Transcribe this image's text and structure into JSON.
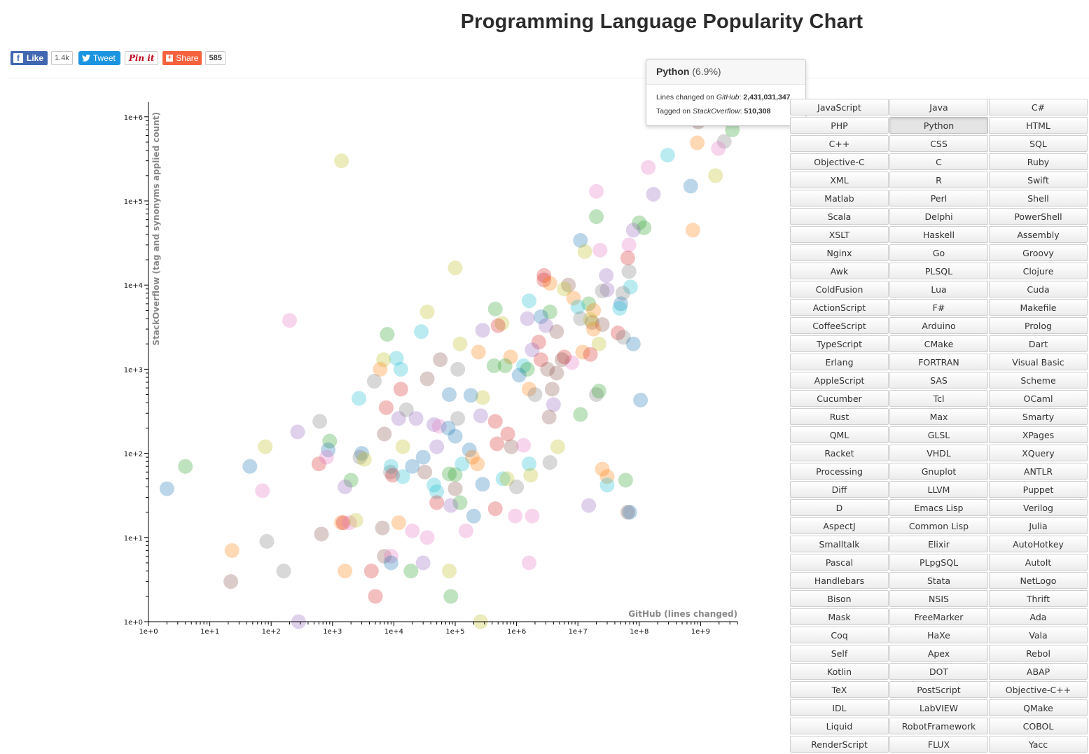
{
  "page": {
    "title": "Programming Language Popularity Chart"
  },
  "social": {
    "like_label": "Like",
    "like_count": "1.4k",
    "tweet_label": "Tweet",
    "pin_label": "Pin it",
    "share_label": "Share",
    "share_count": "585",
    "fb_glyph": "f",
    "share_glyph": "+"
  },
  "tooltip": {
    "name": "Python",
    "percent": "(6.9%)",
    "github_prefix": "Lines changed on ",
    "github_source": "GitHub",
    "github_value": "2,431,031,347",
    "so_prefix": "Tagged on ",
    "so_source": "StackOverflow",
    "so_value": "510,308"
  },
  "languages": [
    "JavaScript",
    "Java",
    "C#",
    "PHP",
    "Python",
    "HTML",
    "C++",
    "CSS",
    "SQL",
    "Objective-C",
    "C",
    "Ruby",
    "XML",
    "R",
    "Swift",
    "Matlab",
    "Perl",
    "Shell",
    "Scala",
    "Delphi",
    "PowerShell",
    "XSLT",
    "Haskell",
    "Assembly",
    "Nginx",
    "Go",
    "Groovy",
    "Awk",
    "PLSQL",
    "Clojure",
    "ColdFusion",
    "Lua",
    "Cuda",
    "ActionScript",
    "F#",
    "Makefile",
    "CoffeeScript",
    "Arduino",
    "Prolog",
    "TypeScript",
    "CMake",
    "Dart",
    "Erlang",
    "FORTRAN",
    "Visual Basic",
    "AppleScript",
    "SAS",
    "Scheme",
    "Cucumber",
    "Tcl",
    "OCaml",
    "Rust",
    "Max",
    "Smarty",
    "QML",
    "GLSL",
    "XPages",
    "Racket",
    "VHDL",
    "XQuery",
    "Processing",
    "Gnuplot",
    "ANTLR",
    "Diff",
    "LLVM",
    "Puppet",
    "D",
    "Emacs Lisp",
    "Verilog",
    "AspectJ",
    "Common Lisp",
    "Julia",
    "Smalltalk",
    "Elixir",
    "AutoHotkey",
    "Pascal",
    "PLpgSQL",
    "AutoIt",
    "Handlebars",
    "Stata",
    "NetLogo",
    "Bison",
    "NSIS",
    "Thrift",
    "Mask",
    "FreeMarker",
    "Ada",
    "Coq",
    "HaXe",
    "Vala",
    "Self",
    "Apex",
    "Rebol",
    "Kotlin",
    "DOT",
    "ABAP",
    "TeX",
    "PostScript",
    "Objective-C++",
    "IDL",
    "LabVIEW",
    "QMake",
    "Liquid",
    "RobotFramework",
    "COBOL",
    "RenderScript",
    "FLUX",
    "Yacc"
  ],
  "selected_language": "Python",
  "chart_data": {
    "type": "scatter",
    "xlabel": "GitHub (lines changed)",
    "ylabel": "StackOverflow (tag and synonyms applied count)",
    "x_scale": "log",
    "y_scale": "log",
    "xlim": [
      1,
      4000000000
    ],
    "ylim": [
      1,
      1500000
    ],
    "x_ticks": [
      "1e+0",
      "1e+1",
      "1e+2",
      "1e+3",
      "1e+4",
      "1e+5",
      "1e+6",
      "1e+7",
      "1e+8",
      "1e+9"
    ],
    "y_ticks": [
      "1e+0",
      "1e+1",
      "1e+2",
      "1e+3",
      "1e+4",
      "1e+5",
      "1e+6"
    ],
    "palette": [
      "#1f77b4",
      "#ff7f0e",
      "#2ca02c",
      "#d62728",
      "#9467bd",
      "#8c564b",
      "#e377c2",
      "#7f7f7f",
      "#bcbd22",
      "#17becf",
      "#aec7e8",
      "#ffbb78",
      "#98df8a",
      "#ff9896",
      "#c5b0d5",
      "#c49c94",
      "#f7b6d2",
      "#c7c7c7",
      "#dbdb8d",
      "#9edae5"
    ],
    "points": [
      [
        912000000.0,
        870000.0,
        5
      ],
      [
        2430000000.0,
        510000.0,
        7
      ],
      [
        3300000000.0,
        700000.0,
        2
      ],
      [
        880000000.0,
        490000.0,
        1
      ],
      [
        1950000000.0,
        420000.0,
        6
      ],
      [
        290000000.0,
        350000.0,
        9
      ],
      [
        140000000.0,
        250000.0,
        6
      ],
      [
        690000000.0,
        150000.0,
        0
      ],
      [
        1750000000.0,
        200000.0,
        8
      ],
      [
        20000000.0,
        130000.0,
        6
      ],
      [
        170000000.0,
        120000.0,
        4
      ],
      [
        100000000.0,
        55000.0,
        2
      ],
      [
        20000000.0,
        65000.0,
        2
      ],
      [
        750000000.0,
        45000.0,
        1
      ],
      [
        120000000.0,
        48000.0,
        2
      ],
      [
        80000000.0,
        45000.0,
        4
      ],
      [
        11000000.0,
        34000.0,
        0
      ],
      [
        23000000.0,
        26000.0,
        6
      ],
      [
        13000000.0,
        25000.0,
        8
      ],
      [
        68000000.0,
        30000.0,
        6
      ],
      [
        65000000.0,
        21000.0,
        3
      ],
      [
        100000.0,
        16000.0,
        8
      ],
      [
        2800000.0,
        13000.0,
        3
      ],
      [
        7000000.0,
        10000.0,
        5
      ],
      [
        1400.0,
        300000.0,
        8
      ],
      [
        200.0,
        3800.0,
        6
      ],
      [
        2800000.0,
        11500.0,
        3
      ],
      [
        3500000.0,
        10500.0,
        1
      ],
      [
        6000000.0,
        9000.0,
        8
      ],
      [
        29000000.0,
        13000.0,
        4
      ],
      [
        30000000.0,
        8800.0,
        4
      ],
      [
        72000000.0,
        9500.0,
        9
      ],
      [
        68000000.0,
        14500.0,
        7
      ],
      [
        54000000.0,
        8000.0,
        7
      ],
      [
        25000000.0,
        8500.0,
        7
      ],
      [
        8500000.0,
        7000.0,
        1
      ],
      [
        15000000.0,
        6000.0,
        2
      ],
      [
        50000000.0,
        6000.0,
        0
      ],
      [
        48000000.0,
        5300.0,
        9
      ],
      [
        18000000.0,
        5000.0,
        1
      ],
      [
        10000000.0,
        5500.0,
        9
      ],
      [
        1600000.0,
        6500.0,
        9
      ],
      [
        450000.0,
        5200.0,
        2
      ],
      [
        35000.0,
        4800.0,
        8
      ],
      [
        3500000.0,
        4800.0,
        2
      ],
      [
        1500000.0,
        4000.0,
        4
      ],
      [
        17000000.0,
        3600.0,
        5
      ],
      [
        2500000.0,
        4200.0,
        0
      ],
      [
        4500000.0,
        2800.0,
        5
      ],
      [
        3000000.0,
        3300.0,
        4
      ],
      [
        25000000.0,
        3400.0,
        5
      ],
      [
        580000.0,
        3500.0,
        8
      ],
      [
        18000000.0,
        3000.0,
        1
      ],
      [
        28000.0,
        2800.0,
        9
      ],
      [
        500000.0,
        3300.0,
        3
      ],
      [
        7800.0,
        2600.0,
        2
      ],
      [
        280000.0,
        2900.0,
        4
      ],
      [
        11000000.0,
        4000.0,
        7
      ],
      [
        16000000.0,
        3900.0,
        8
      ],
      [
        45000000.0,
        2700.0,
        3
      ],
      [
        55000000.0,
        2400.0,
        7
      ],
      [
        80000000.0,
        2000.0,
        0
      ],
      [
        22000000.0,
        2000.0,
        8
      ],
      [
        120000.0,
        2000.0,
        8
      ],
      [
        2300000.0,
        2100.0,
        3
      ],
      [
        1800000.0,
        1700.0,
        4
      ],
      [
        1300000.0,
        1100.0,
        9
      ],
      [
        1500000.0,
        1000.0,
        2
      ],
      [
        1100000.0,
        850.0,
        0
      ],
      [
        2500000.0,
        1300.0,
        3
      ],
      [
        3200000.0,
        1000.0,
        5
      ],
      [
        4500000.0,
        900.0,
        5
      ],
      [
        8000000.0,
        1200.0,
        6
      ],
      [
        6000000.0,
        1400.0,
        3
      ],
      [
        12000000.0,
        1600.0,
        1
      ],
      [
        16000000.0,
        1500.0,
        3
      ],
      [
        5500000.0,
        1300.0,
        5
      ],
      [
        57000.0,
        1300.0,
        5
      ],
      [
        110000.0,
        1000.0,
        7
      ],
      [
        800000.0,
        1400.0,
        1
      ],
      [
        240000.0,
        1600.0,
        1
      ],
      [
        80000.0,
        500.0,
        0
      ],
      [
        430000.0,
        1100.0,
        2
      ],
      [
        650000.0,
        1100.0,
        2
      ],
      [
        11000.0,
        1350.0,
        9
      ],
      [
        13000.0,
        1000.0,
        9
      ],
      [
        6800.0,
        1300.0,
        8
      ],
      [
        6000.0,
        1000.0,
        1
      ],
      [
        4800.0,
        720.0,
        7
      ],
      [
        35000.0,
        770.0,
        5
      ],
      [
        13000.0,
        580.0,
        3
      ],
      [
        2700.0,
        450.0,
        9
      ],
      [
        280000.0,
        460.0,
        8
      ],
      [
        180000.0,
        490.0,
        0
      ],
      [
        1600000.0,
        580.0,
        1
      ],
      [
        2000000.0,
        500.0,
        7
      ],
      [
        3800000.0,
        580.0,
        5
      ],
      [
        4000000.0,
        380.0,
        4
      ],
      [
        20000000.0,
        500.0,
        7
      ],
      [
        22000000.0,
        550.0,
        2
      ],
      [
        105000000.0,
        430.0,
        0
      ],
      [
        7500.0,
        350.0,
        3
      ],
      [
        12000.0,
        260.0,
        4
      ],
      [
        16000.0,
        330.0,
        7
      ],
      [
        23000.0,
        260.0,
        4
      ],
      [
        110000.0,
        260.0,
        7
      ],
      [
        260000.0,
        280.0,
        4
      ],
      [
        3400000.0,
        270.0,
        5
      ],
      [
        11000000.0,
        290.0,
        2
      ],
      [
        620.0,
        240.0,
        7
      ],
      [
        270.0,
        180.0,
        4
      ],
      [
        7000.0,
        170.0,
        5
      ],
      [
        45000.0,
        220.0,
        4
      ],
      [
        55000.0,
        210.0,
        6
      ],
      [
        77000.0,
        200.0,
        0
      ],
      [
        100000.0,
        160.0,
        0
      ],
      [
        450000.0,
        240.0,
        3
      ],
      [
        720000.0,
        170.0,
        3
      ],
      [
        900.0,
        140.0,
        2
      ],
      [
        80.0,
        120.0,
        8
      ],
      [
        850.0,
        110.0,
        0
      ],
      [
        3000.0,
        100.0,
        0
      ],
      [
        14000.0,
        120.0,
        8
      ],
      [
        50000.0,
        120.0,
        4
      ],
      [
        170000.0,
        110.0,
        0
      ],
      [
        480000.0,
        130.0,
        3
      ],
      [
        820000.0,
        120.0,
        5
      ],
      [
        1300000.0,
        125.0,
        6
      ],
      [
        4700000.0,
        120.0,
        8
      ],
      [
        2800.0,
        90.0,
        7
      ],
      [
        30000.0,
        90.0,
        0
      ],
      [
        20000.0,
        70.0,
        0
      ],
      [
        32000.0,
        60.0,
        5
      ],
      [
        190000.0,
        90.0,
        1
      ],
      [
        230000.0,
        75.0,
        1
      ],
      [
        3500000.0,
        78.0,
        7
      ],
      [
        4.0,
        70.0,
        2
      ],
      [
        45.0,
        70.0,
        0
      ],
      [
        600.0,
        75.0,
        3
      ],
      [
        800.0,
        90.0,
        6
      ],
      [
        3300.0,
        85.0,
        8
      ],
      [
        8800.0,
        60.0,
        7
      ],
      [
        9000.0,
        70.0,
        9
      ],
      [
        9500.0,
        55.0,
        3
      ],
      [
        14000.0,
        53.0,
        9
      ],
      [
        80000.0,
        57.0,
        2
      ],
      [
        100000.0,
        56.0,
        2
      ],
      [
        130000.0,
        75.0,
        9
      ],
      [
        600000.0,
        50.0,
        9
      ],
      [
        700000.0,
        50.0,
        8
      ],
      [
        1600000.0,
        75.0,
        9
      ],
      [
        1700000.0,
        55.0,
        8
      ],
      [
        25000000.0,
        65.0,
        1
      ],
      [
        30000000.0,
        53.0,
        1
      ],
      [
        60000000.0,
        48.0,
        2
      ],
      [
        2.0,
        38.0,
        0
      ],
      [
        2000.0,
        48.0,
        2
      ],
      [
        1600.0,
        40.0,
        4
      ],
      [
        45000.0,
        42.0,
        9
      ],
      [
        50000.0,
        35.0,
        9
      ],
      [
        100000.0,
        38.0,
        5
      ],
      [
        280000.0,
        43.0,
        0
      ],
      [
        1000000.0,
        40.0,
        7
      ],
      [
        72.0,
        36.0,
        6
      ],
      [
        30000000.0,
        42.0,
        9
      ],
      [
        50000.0,
        26.0,
        3
      ],
      [
        120000.0,
        26.0,
        2
      ],
      [
        450000.0,
        22.0,
        3
      ],
      [
        85000.0,
        24.0,
        4
      ],
      [
        15000000.0,
        24.0,
        4
      ],
      [
        65000000.0,
        20.0,
        5
      ],
      [
        70000000.0,
        20.0,
        0
      ],
      [
        200000.0,
        18.0,
        0
      ],
      [
        950000.0,
        18.0,
        6
      ],
      [
        1800000.0,
        18.0,
        6
      ],
      [
        1400.0,
        15.0,
        1
      ],
      [
        1500.0,
        15.0,
        3
      ],
      [
        1900.0,
        15.0,
        6
      ],
      [
        2400.0,
        16.0,
        8
      ],
      [
        6500.0,
        13.0,
        5
      ],
      [
        12000.0,
        15.0,
        1
      ],
      [
        20000.0,
        12.0,
        6
      ],
      [
        35000.0,
        10.0,
        6
      ],
      [
        150000.0,
        12.0,
        6
      ],
      [
        660.0,
        11.0,
        5
      ],
      [
        85.0,
        9.0,
        7
      ],
      [
        23.0,
        7.0,
        1
      ],
      [
        22.0,
        3.0,
        5
      ],
      [
        160.0,
        4.0,
        7
      ],
      [
        1600.0,
        4.0,
        1
      ],
      [
        4300.0,
        4.0,
        3
      ],
      [
        7000.0,
        6.0,
        5
      ],
      [
        9000.0,
        6.0,
        6
      ],
      [
        9000.0,
        5.0,
        0
      ],
      [
        19000.0,
        4.0,
        2
      ],
      [
        30000.0,
        5.0,
        4
      ],
      [
        80000.0,
        4.0,
        8
      ],
      [
        85000.0,
        2.0,
        2
      ],
      [
        1600000.0,
        5.0,
        6
      ],
      [
        5000.0,
        2.0,
        3
      ],
      [
        280.0,
        1.0,
        4
      ],
      [
        260000.0,
        1.0,
        8
      ]
    ]
  }
}
